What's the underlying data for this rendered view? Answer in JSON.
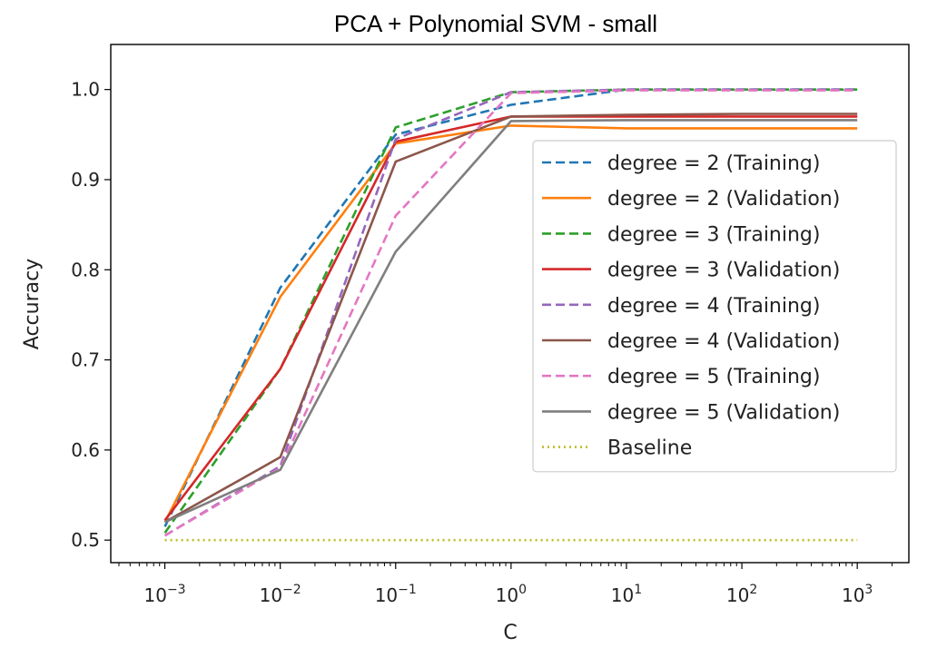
{
  "chart_data": {
    "type": "line",
    "title": "PCA + Polynomial SVM - small",
    "xlabel": "C",
    "ylabel": "Accuracy",
    "xscale": "log",
    "x": [
      0.001,
      0.01,
      0.1,
      1,
      10,
      100,
      1000
    ],
    "xlim": [
      0.00034,
      2800
    ],
    "ylim": [
      0.475,
      1.05
    ],
    "x_ticks": [
      {
        "base": "10",
        "exp": "−3"
      },
      {
        "base": "10",
        "exp": "−2"
      },
      {
        "base": "10",
        "exp": "−1"
      },
      {
        "base": "10",
        "exp": "0"
      },
      {
        "base": "10",
        "exp": "1"
      },
      {
        "base": "10",
        "exp": "2"
      },
      {
        "base": "10",
        "exp": "3"
      }
    ],
    "y_ticks": [
      "0.5",
      "0.6",
      "0.7",
      "0.8",
      "0.9",
      "1.0"
    ],
    "legend_position": "center-right",
    "series": [
      {
        "name": "degree = 2 (Training)",
        "color": "#1f77b4",
        "dash": "dashed",
        "values": [
          0.515,
          0.78,
          0.95,
          0.983,
          1.0,
          1.0,
          1.0
        ]
      },
      {
        "name": "degree = 2 (Validation)",
        "color": "#ff7f0e",
        "dash": "solid",
        "values": [
          0.52,
          0.77,
          0.94,
          0.96,
          0.957,
          0.957,
          0.957
        ]
      },
      {
        "name": "degree = 3 (Training)",
        "color": "#2ca02c",
        "dash": "dashed",
        "values": [
          0.508,
          0.69,
          0.958,
          0.997,
          1.0,
          1.0,
          1.0
        ]
      },
      {
        "name": "degree = 3 (Validation)",
        "color": "#d62728",
        "dash": "solid",
        "values": [
          0.522,
          0.69,
          0.942,
          0.97,
          0.97,
          0.97,
          0.97
        ]
      },
      {
        "name": "degree = 4 (Training)",
        "color": "#9467bd",
        "dash": "dashed",
        "values": [
          0.505,
          0.582,
          0.945,
          0.997,
          1.0,
          1.0,
          1.0
        ]
      },
      {
        "name": "degree = 4 (Validation)",
        "color": "#8c564b",
        "dash": "solid",
        "values": [
          0.52,
          0.592,
          0.92,
          0.97,
          0.972,
          0.973,
          0.973
        ]
      },
      {
        "name": "degree = 5 (Training)",
        "color": "#e377c2",
        "dash": "dashed",
        "values": [
          0.505,
          0.58,
          0.86,
          0.996,
          0.999,
          0.999,
          0.999
        ]
      },
      {
        "name": "degree = 5 (Validation)",
        "color": "#7f7f7f",
        "dash": "solid",
        "values": [
          0.52,
          0.578,
          0.82,
          0.965,
          0.966,
          0.966,
          0.966
        ]
      },
      {
        "name": "Baseline",
        "color": "#bcbd22",
        "dash": "dotted",
        "values": [
          0.5,
          0.5,
          0.5,
          0.5,
          0.5,
          0.5,
          0.5
        ]
      }
    ]
  }
}
